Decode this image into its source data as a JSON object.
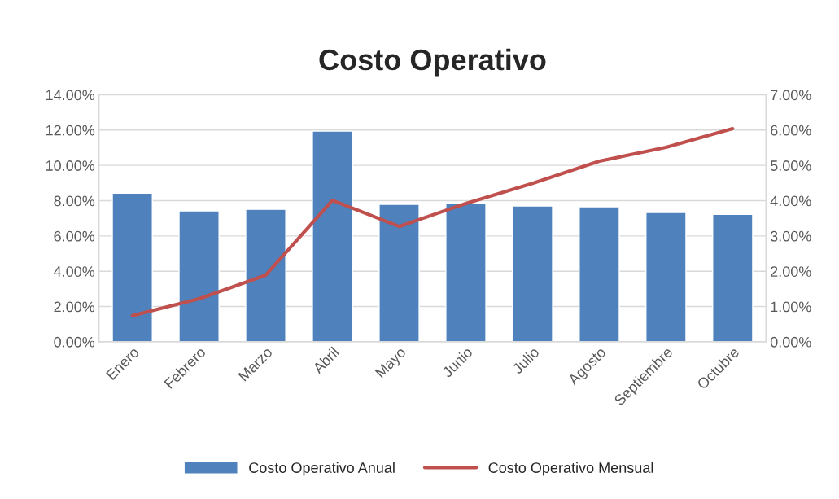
{
  "chart_data": {
    "type": "bar",
    "title": "Costo Operativo",
    "categories": [
      "Enero",
      "Febrero",
      "Marzo",
      "Abril",
      "Mayo",
      "Junio",
      "Julio",
      "Agosto",
      "Septiembre",
      "Octubre"
    ],
    "series": [
      {
        "name": "Costo Operativo Anual",
        "color": "#4f81bd",
        "values": [
          8.43,
          7.42,
          7.51,
          11.94,
          7.79,
          7.83,
          7.7,
          7.65,
          7.33,
          7.23
        ]
      },
      {
        "name": "Costo Operativo Mensual",
        "type": "line",
        "axis": "y2",
        "color": "#c0504d",
        "values": [
          0.74,
          1.22,
          1.89,
          4.01,
          3.27,
          3.92,
          4.49,
          5.12,
          5.51,
          6.04
        ]
      }
    ],
    "ylim": [
      0,
      14
    ],
    "yticks": [
      {
        "value": 0,
        "label": "0.00%"
      },
      {
        "value": 2,
        "label": "2.00%"
      },
      {
        "value": 4,
        "label": "4.00%"
      },
      {
        "value": 6,
        "label": "6.00%"
      },
      {
        "value": 8,
        "label": "8.00%"
      },
      {
        "value": 10,
        "label": "10.00%"
      },
      {
        "value": 12,
        "label": "12.00%"
      },
      {
        "value": 14,
        "label": "14.00%"
      }
    ],
    "y2lim": [
      0,
      7
    ],
    "y2ticks": [
      {
        "value": 0,
        "label": "0.00%"
      },
      {
        "value": 1,
        "label": "1.00%"
      },
      {
        "value": 2,
        "label": "2.00%"
      },
      {
        "value": 3,
        "label": "3.00%"
      },
      {
        "value": 4,
        "label": "4.00%"
      },
      {
        "value": 5,
        "label": "5.00%"
      },
      {
        "value": 6,
        "label": "6.00%"
      },
      {
        "value": 7,
        "label": "7.00%"
      }
    ],
    "grid": "y",
    "legend": "bottom",
    "marker": "none",
    "line_style": "solid"
  }
}
